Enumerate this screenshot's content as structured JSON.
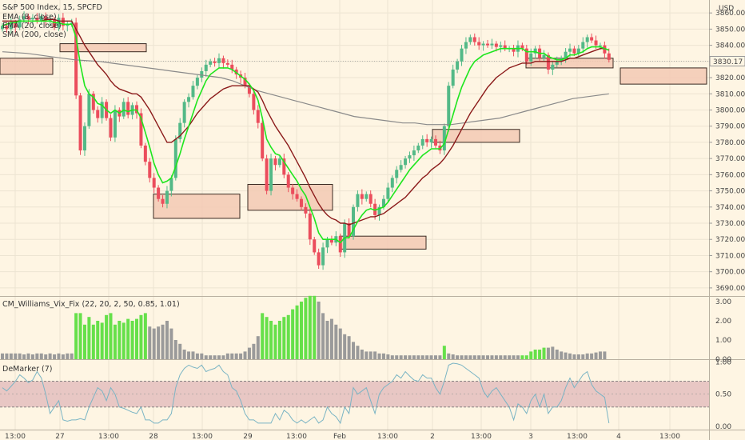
{
  "chart_data": [
    {
      "type": "candlestick",
      "title": "S&P 500 Index, 15, SPCFD",
      "currency": "USD",
      "indicators": [
        "EMA (8, close)",
        "EMA (20, close)",
        "SMA (200, close)"
      ],
      "ylim": [
        3685,
        3868
      ],
      "y_ticks": [
        3690,
        3700,
        3710,
        3720,
        3730,
        3740,
        3750,
        3760,
        3770,
        3780,
        3790,
        3800,
        3810,
        3820,
        3830,
        3840,
        3850,
        3860
      ],
      "last_price": "3830.17",
      "x_ticks": [
        "13:00",
        "27",
        "13:00",
        "28",
        "13:00",
        "29",
        "13:00",
        "Feb",
        "13:00",
        "2",
        "13:00",
        "3",
        "13:00",
        "4",
        "13:00"
      ],
      "candles_close": [
        3852,
        3850,
        3854,
        3851,
        3856,
        3858,
        3856,
        3857,
        3855,
        3858,
        3855,
        3856,
        3851,
        3857,
        3852,
        3853,
        3854,
        3809,
        3775,
        3790,
        3810,
        3800,
        3795,
        3805,
        3795,
        3783,
        3800,
        3796,
        3805,
        3797,
        3803,
        3798,
        3778,
        3768,
        3758,
        3752,
        3745,
        3742,
        3750,
        3758,
        3782,
        3792,
        3805,
        3808,
        3815,
        3820,
        3824,
        3828,
        3830,
        3829,
        3832,
        3829,
        3828,
        3825,
        3822,
        3820,
        3815,
        3810,
        3800,
        3792,
        3770,
        3750,
        3770,
        3766,
        3770,
        3760,
        3752,
        3748,
        3745,
        3740,
        3736,
        3720,
        3712,
        3704,
        3715,
        3720,
        3718,
        3722,
        3712,
        3730,
        3722,
        3740,
        3748,
        3745,
        3748,
        3742,
        3735,
        3740,
        3745,
        3752,
        3758,
        3763,
        3766,
        3770,
        3772,
        3775,
        3778,
        3782,
        3780,
        3782,
        3778,
        3775,
        3790,
        3815,
        3825,
        3830,
        3838,
        3842,
        3845,
        3842,
        3840,
        3841,
        3840,
        3841,
        3839,
        3840,
        3838,
        3838,
        3836,
        3840,
        3838,
        3830,
        3835,
        3838,
        3832,
        3834,
        3825,
        3828,
        3830,
        3832,
        3836,
        3838,
        3835,
        3838,
        3842,
        3845,
        3843,
        3840,
        3840,
        3835,
        3831
      ],
      "ema8": [
        3852,
        3853,
        3854,
        3854,
        3855,
        3855,
        3855,
        3855,
        3855,
        3855,
        3855,
        3855,
        3854,
        3854,
        3853,
        3853,
        3853,
        3845,
        3828,
        3815,
        3810,
        3808,
        3804,
        3803,
        3800,
        3798,
        3800,
        3798,
        3800,
        3799,
        3800,
        3800,
        3795,
        3786,
        3777,
        3767,
        3760,
        3755,
        3756,
        3758,
        3765,
        3773,
        3782,
        3790,
        3798,
        3806,
        3812,
        3818,
        3822,
        3824,
        3826,
        3826,
        3826,
        3825,
        3823,
        3821,
        3819,
        3816,
        3812,
        3806,
        3795,
        3782,
        3777,
        3773,
        3772,
        3768,
        3764,
        3760,
        3756,
        3751,
        3747,
        3740,
        3733,
        3724,
        3720,
        3720,
        3720,
        3720,
        3718,
        3721,
        3721,
        3726,
        3731,
        3735,
        3738,
        3739,
        3738,
        3739,
        3740,
        3743,
        3747,
        3751,
        3755,
        3759,
        3763,
        3766,
        3769,
        3772,
        3774,
        3776,
        3776,
        3776,
        3779,
        3788,
        3797,
        3806,
        3814,
        3820,
        3826,
        3830,
        3832,
        3834,
        3835,
        3836,
        3837,
        3838,
        3838,
        3838,
        3838,
        3838,
        3838,
        3836,
        3836,
        3836,
        3835,
        3835,
        3833,
        3832,
        3831,
        3831,
        3832,
        3834,
        3834,
        3835,
        3836,
        3838,
        3839,
        3839,
        3839,
        3838,
        3837
      ],
      "ema20": [
        3855,
        3855,
        3855,
        3855,
        3855,
        3855,
        3855,
        3855,
        3855,
        3855,
        3856,
        3856,
        3856,
        3855,
        3855,
        3855,
        3855,
        3850,
        3845,
        3840,
        3836,
        3832,
        3828,
        3825,
        3822,
        3818,
        3815,
        3813,
        3812,
        3811,
        3810,
        3810,
        3808,
        3804,
        3800,
        3795,
        3790,
        3785,
        3780,
        3780,
        3782,
        3784,
        3787,
        3790,
        3794,
        3798,
        3801,
        3804,
        3807,
        3809,
        3811,
        3813,
        3814,
        3815,
        3815,
        3815,
        3815,
        3815,
        3813,
        3811,
        3806,
        3800,
        3795,
        3790,
        3786,
        3782,
        3778,
        3773,
        3768,
        3763,
        3758,
        3752,
        3747,
        3742,
        3738,
        3735,
        3733,
        3732,
        3730,
        3730,
        3729,
        3730,
        3731,
        3732,
        3733,
        3734,
        3734,
        3735,
        3736,
        3738,
        3740,
        3742,
        3744,
        3746,
        3749,
        3752,
        3755,
        3758,
        3760,
        3763,
        3765,
        3767,
        3770,
        3774,
        3778,
        3783,
        3788,
        3793,
        3798,
        3802,
        3806,
        3810,
        3814,
        3817,
        3820,
        3822,
        3824,
        3826,
        3827,
        3828,
        3829,
        3829,
        3829,
        3830,
        3830,
        3830,
        3830,
        3830,
        3830,
        3830,
        3831,
        3832,
        3832,
        3833,
        3834,
        3835,
        3836,
        3837,
        3838,
        3838,
        3837
      ],
      "sma200": [
        3836,
        3835.5,
        3835,
        3834,
        3833,
        3832,
        3831,
        3830.5,
        3830,
        3829,
        3828,
        3827,
        3826,
        3825,
        3824,
        3823,
        3822,
        3821,
        3820,
        3818,
        3815,
        3812,
        3810,
        3808,
        3806,
        3804,
        3802,
        3800,
        3798,
        3796,
        3795,
        3794,
        3793,
        3792,
        3792,
        3791,
        3791,
        3791,
        3792,
        3793,
        3794,
        3795,
        3797,
        3799,
        3801,
        3803,
        3805,
        3807,
        3808,
        3809,
        3810
      ],
      "boxes_price": [
        [
          3832,
          3822
        ],
        [
          3841,
          3836
        ],
        [
          3748,
          3733
        ],
        [
          3754,
          3738
        ],
        [
          3722,
          3714
        ],
        [
          3788,
          3780
        ],
        [
          3832,
          3826
        ],
        [
          3826,
          3816
        ]
      ]
    },
    {
      "type": "bar",
      "title": "CM_Williams_Vix_Fix (22, 20, 2, 50, 0.85, 1.01)",
      "ylim": [
        0,
        3.25
      ],
      "y_ticks": [
        "0.00",
        "1.00",
        "2.00",
        "3.00"
      ],
      "values": [
        0.3,
        0.3,
        0.3,
        0.3,
        0.3,
        0.25,
        0.3,
        0.25,
        0.3,
        0.3,
        0.25,
        0.3,
        0.25,
        0.3,
        0.25,
        0.3,
        0.3,
        2.4,
        2.4,
        1.8,
        2.2,
        1.8,
        2.0,
        1.9,
        2.3,
        2.4,
        1.8,
        2.0,
        1.9,
        2.1,
        2.0,
        2.1,
        2.3,
        2.4,
        1.7,
        1.6,
        1.7,
        1.8,
        2.0,
        1.6,
        1.0,
        0.8,
        0.5,
        0.4,
        0.4,
        0.3,
        0.3,
        0.2,
        0.2,
        0.2,
        0.2,
        0.2,
        0.3,
        0.3,
        0.3,
        0.3,
        0.4,
        0.6,
        0.8,
        1.2,
        2.4,
        2.2,
        2.0,
        1.8,
        2.0,
        2.2,
        2.3,
        2.6,
        2.8,
        3.0,
        3.2,
        3.3,
        3.3,
        3.0,
        2.4,
        2.0,
        2.1,
        1.8,
        1.6,
        1.3,
        1.2,
        0.9,
        0.7,
        0.5,
        0.4,
        0.4,
        0.4,
        0.3,
        0.3,
        0.25,
        0.2,
        0.2,
        0.2,
        0.2,
        0.2,
        0.2,
        0.2,
        0.2,
        0.2,
        0.2,
        0.2,
        0.2,
        0.7,
        0.3,
        0.25,
        0.2,
        0.2,
        0.2,
        0.2,
        0.2,
        0.2,
        0.2,
        0.2,
        0.2,
        0.2,
        0.2,
        0.2,
        0.2,
        0.2,
        0.2,
        0.2,
        0.2,
        0.4,
        0.5,
        0.5,
        0.6,
        0.6,
        0.65,
        0.5,
        0.4,
        0.35,
        0.3,
        0.25,
        0.25,
        0.25,
        0.3,
        0.3,
        0.35,
        0.4,
        0.4
      ],
      "highlight": [
        17,
        18,
        19,
        20,
        21,
        22,
        23,
        24,
        25,
        26,
        27,
        28,
        29,
        30,
        31,
        32,
        33,
        60,
        61,
        62,
        63,
        64,
        65,
        66,
        67,
        68,
        69,
        70,
        71,
        72,
        102,
        120,
        121,
        122,
        123,
        124,
        125
      ]
    },
    {
      "type": "line",
      "title": "DeMarker (7)",
      "ylim": [
        -0.05,
        1.03
      ],
      "y_ticks": [
        "0.00",
        "0.50",
        "1.00"
      ],
      "band": [
        0.3,
        0.7
      ],
      "values": [
        0.6,
        0.55,
        0.62,
        0.7,
        0.8,
        0.75,
        0.68,
        0.72,
        0.85,
        0.75,
        0.5,
        0.2,
        0.3,
        0.4,
        0.1,
        0.08,
        0.1,
        0.1,
        0.12,
        0.1,
        0.3,
        0.45,
        0.6,
        0.55,
        0.4,
        0.6,
        0.5,
        0.3,
        0.28,
        0.25,
        0.22,
        0.2,
        0.3,
        0.1,
        0.1,
        0.05,
        0.05,
        0.1,
        0.1,
        0.2,
        0.6,
        0.8,
        0.9,
        0.95,
        0.92,
        0.9,
        0.95,
        0.85,
        0.88,
        0.9,
        0.95,
        0.85,
        0.8,
        0.6,
        0.55,
        0.4,
        0.2,
        0.1,
        0.1,
        0.05,
        0.05,
        0.05,
        0.05,
        0.2,
        0.1,
        0.25,
        0.2,
        0.1,
        0.05,
        0.1,
        0.05,
        0.1,
        0.15,
        0.05,
        0.1,
        0.3,
        0.2,
        0.15,
        0.05,
        0.3,
        0.2,
        0.6,
        0.5,
        0.55,
        0.6,
        0.4,
        0.2,
        0.5,
        0.6,
        0.65,
        0.7,
        0.8,
        0.75,
        0.85,
        0.78,
        0.72,
        0.7,
        0.8,
        0.75,
        0.75,
        0.6,
        0.5,
        0.7,
        0.95,
        0.98,
        0.97,
        0.95,
        0.9,
        0.85,
        0.8,
        0.75,
        0.55,
        0.45,
        0.55,
        0.6,
        0.5,
        0.4,
        0.3,
        0.1,
        0.35,
        0.3,
        0.2,
        0.4,
        0.5,
        0.3,
        0.5,
        0.2,
        0.3,
        0.3,
        0.4,
        0.6,
        0.75,
        0.6,
        0.7,
        0.8,
        0.85,
        0.65,
        0.55,
        0.5,
        0.45,
        0.05
      ]
    }
  ]
}
